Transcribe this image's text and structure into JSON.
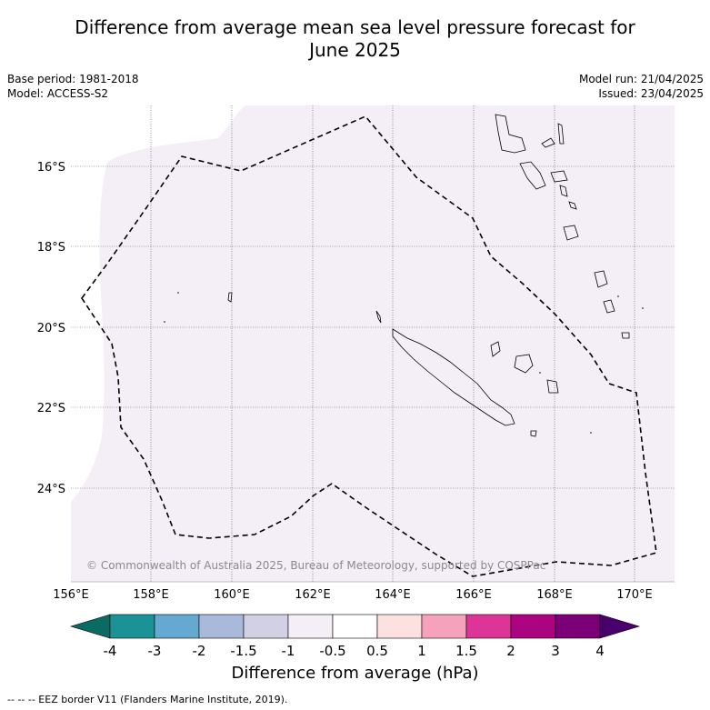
{
  "title_line1": "Difference from average mean sea level pressure forecast for",
  "title_line2": "June 2025",
  "base_period": "Base period: 1981-2018",
  "model": "Model: ACCESS-S2",
  "model_run": "Model run: 21/04/2025",
  "issued": "Issued: 23/04/2025",
  "copyright": "© Commonwealth of Australia 2025, Bureau of Meteorology, supported by COSPPac",
  "lat_ticks": [
    "16°S",
    "18°S",
    "20°S",
    "22°S",
    "24°S"
  ],
  "lon_ticks": [
    "156°E",
    "158°E",
    "160°E",
    "162°E",
    "164°E",
    "166°E",
    "168°E",
    "170°E"
  ],
  "colorbar": {
    "title": "Difference from average (hPa)",
    "tick_labels": [
      "-4",
      "-3",
      "-2",
      "-1.5",
      "-1",
      "-0.5",
      "0.5",
      "1",
      "1.5",
      "2",
      "3",
      "4"
    ],
    "colors": [
      "#0a6b63",
      "#1a9296",
      "#66a9d0",
      "#a8b9da",
      "#d2d0e3",
      "#f4eef6",
      "#ffffff",
      "#fde0e0",
      "#f7a2bc",
      "#dc3597",
      "#ac0380",
      "#7b0078",
      "#4a006a"
    ]
  },
  "footnote": "--  --  -- EEZ border V11 (Flanders Marine Institute, 2019)."
}
